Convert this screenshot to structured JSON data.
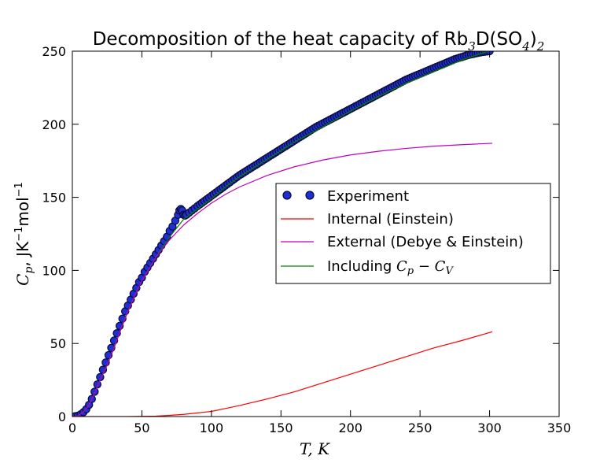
{
  "title": {
    "prefix": "Decomposition of the heat capacity of Rb",
    "sub1": "3",
    "mid": "D(SO",
    "sub2": "4",
    "close": ")",
    "sub3": "2"
  },
  "axes": {
    "x_label_math": "T, K",
    "y_label_prefix_math": "C",
    "y_label_sub": "p",
    "y_label_unit": ", JK",
    "y_label_exp1": "−1",
    "y_label_mol": "mol",
    "y_label_exp2": "−1",
    "x_ticks": [
      "0",
      "50",
      "100",
      "150",
      "200",
      "250",
      "300",
      "350"
    ],
    "y_ticks": [
      "0",
      "50",
      "100",
      "150",
      "200",
      "250"
    ]
  },
  "legend": {
    "experiment": "Experiment",
    "internal": "Internal (Einstein)",
    "external": "External (Debye & Einstein)",
    "including_prefix": "Including ",
    "including_math_c": "C",
    "including_math_p": "p",
    "including_math_minus": " − ",
    "including_math_c2": "C",
    "including_math_v": "V"
  },
  "colors": {
    "experiment_fill": "#1f2fd6",
    "experiment_edge": "#0a0a33",
    "internal": "#ff0000",
    "external": "#bf00bf",
    "including": "#008000"
  },
  "chart_data": {
    "type": "scatter",
    "title": "Decomposition of the heat capacity of Rb3D(SO4)2",
    "xlabel": "T, K",
    "ylabel": "Cp, JK-1mol-1",
    "xlim": [
      0,
      350
    ],
    "ylim": [
      0,
      250
    ],
    "grid": false,
    "legend_position": "center-right",
    "series": [
      {
        "name": "Experiment",
        "style": "markers",
        "x": [
          2,
          4,
          6,
          8,
          10,
          12,
          14,
          16,
          18,
          20,
          22,
          24,
          26,
          28,
          30,
          32,
          34,
          36,
          38,
          40,
          42,
          44,
          46,
          48,
          50,
          52,
          54,
          56,
          58,
          60,
          62,
          64,
          66,
          68,
          70,
          72,
          74,
          76,
          77,
          78,
          79,
          80,
          81,
          82,
          84,
          86,
          88,
          90,
          95,
          100,
          105,
          110,
          115,
          120,
          125,
          130,
          135,
          140,
          145,
          150,
          155,
          160,
          165,
          170,
          175,
          180,
          185,
          190,
          195,
          200,
          205,
          210,
          215,
          220,
          225,
          230,
          235,
          240,
          245,
          250,
          255,
          260,
          265,
          270,
          275,
          280,
          285,
          290,
          295,
          300
        ],
        "y": [
          0.2,
          0.6,
          1.5,
          3,
          5,
          8,
          12,
          17,
          22,
          27,
          32,
          37,
          42,
          47,
          52,
          57,
          62,
          67,
          72,
          76,
          80,
          84,
          88,
          92,
          95,
          99,
          102,
          105,
          108,
          111,
          114,
          117,
          120,
          123,
          127,
          130,
          134,
          138,
          141,
          142,
          141,
          138,
          137.5,
          138,
          139.5,
          141,
          142.5,
          144,
          147.5,
          151,
          154.5,
          158,
          161.5,
          165,
          168,
          171,
          174,
          177,
          180,
          183,
          186,
          189,
          192,
          195,
          198,
          200.5,
          203,
          205.5,
          208,
          210.5,
          213,
          215.5,
          218,
          220.5,
          223,
          225.5,
          228,
          230.5,
          232.5,
          234.5,
          236.5,
          238.5,
          240.5,
          242.5,
          244.5,
          246,
          247.5,
          248.5,
          249.5,
          250
        ]
      },
      {
        "name": "Internal (Einstein)",
        "style": "line",
        "x": [
          0,
          40,
          60,
          70,
          80,
          90,
          100,
          110,
          120,
          140,
          160,
          180,
          200,
          220,
          240,
          260,
          280,
          302
        ],
        "y": [
          0,
          0,
          0.3,
          0.8,
          1.5,
          2.5,
          3.5,
          5.5,
          7.5,
          12,
          17,
          23,
          29,
          35,
          41,
          47,
          52,
          58
        ]
      },
      {
        "name": "External (Debye & Einstein)",
        "style": "line",
        "x": [
          0,
          4,
          8,
          12,
          16,
          20,
          25,
          30,
          35,
          40,
          45,
          50,
          55,
          60,
          65,
          70,
          75,
          80,
          90,
          100,
          110,
          120,
          140,
          160,
          180,
          200,
          220,
          240,
          260,
          280,
          302
        ],
        "y": [
          0,
          0.5,
          3,
          8,
          16,
          25,
          35,
          47,
          60,
          72,
          83,
          93,
          101,
          109,
          115,
          121,
          126,
          131,
          139,
          146,
          152,
          157,
          165,
          171,
          175.5,
          179,
          181.5,
          183.5,
          185,
          186,
          187
        ]
      },
      {
        "name": "Including Cp − CV",
        "style": "line",
        "x": [
          0,
          4,
          8,
          12,
          16,
          20,
          25,
          30,
          35,
          40,
          45,
          50,
          55,
          60,
          65,
          70,
          75,
          80,
          90,
          100,
          110,
          120,
          140,
          160,
          180,
          200,
          220,
          240,
          260,
          280,
          302
        ],
        "y": [
          0,
          0.5,
          3,
          8,
          16,
          25,
          35,
          47,
          60,
          72,
          83,
          93,
          101,
          109,
          116,
          123,
          129,
          135,
          142,
          149,
          157,
          164,
          176,
          188,
          198,
          209,
          219,
          228,
          236,
          244,
          251
        ]
      }
    ]
  }
}
